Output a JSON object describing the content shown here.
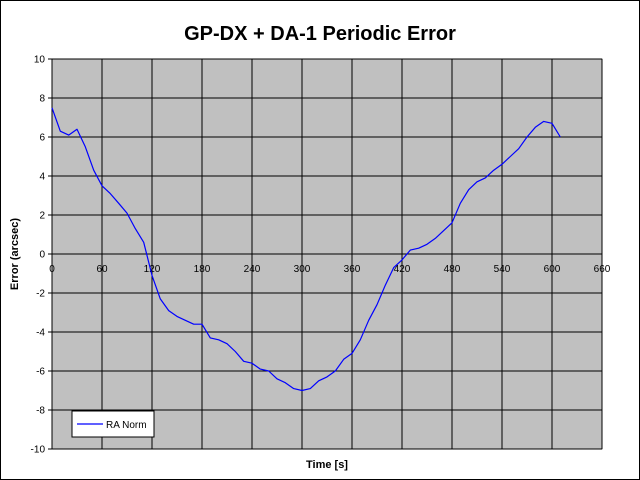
{
  "chart_data": {
    "type": "line",
    "title": "GP-DX + DA-1 Periodic Error",
    "xlabel": "Time [s]",
    "ylabel": "Error (arcsec)",
    "xlim": [
      0,
      660
    ],
    "ylim": [
      -10,
      10
    ],
    "x_ticks": [
      "0",
      "60",
      "120",
      "180",
      "240",
      "300",
      "360",
      "420",
      "480",
      "540",
      "600",
      "660"
    ],
    "y_ticks": [
      "10",
      "8",
      "6",
      "4",
      "2",
      "0",
      "-2",
      "-4",
      "-6",
      "-8",
      "-10"
    ],
    "grid": true,
    "legend_position": "bottom-left",
    "plot_background": "#c0c0c0",
    "series": [
      {
        "name": "RA Norm",
        "color": "#0000ff",
        "x": [
          0,
          10,
          20,
          30,
          40,
          50,
          60,
          70,
          80,
          90,
          100,
          110,
          120,
          130,
          140,
          150,
          160,
          170,
          180,
          190,
          200,
          210,
          220,
          230,
          240,
          250,
          260,
          270,
          280,
          290,
          300,
          310,
          320,
          330,
          340,
          350,
          360,
          370,
          380,
          390,
          400,
          410,
          420,
          430,
          440,
          450,
          460,
          470,
          480,
          490,
          500,
          510,
          520,
          530,
          540,
          550,
          560,
          570,
          580,
          590,
          600,
          610
        ],
        "y": [
          7.5,
          6.3,
          6.1,
          6.4,
          5.5,
          4.3,
          3.5,
          3.1,
          2.6,
          2.1,
          1.3,
          0.6,
          -1.1,
          -2.3,
          -2.9,
          -3.2,
          -3.4,
          -3.6,
          -3.6,
          -4.3,
          -4.4,
          -4.6,
          -5.0,
          -5.5,
          -5.6,
          -5.9,
          -6.0,
          -6.4,
          -6.6,
          -6.9,
          -7.0,
          -6.9,
          -6.5,
          -6.3,
          -6.0,
          -5.4,
          -5.1,
          -4.4,
          -3.4,
          -2.6,
          -1.6,
          -0.7,
          -0.3,
          0.2,
          0.3,
          0.5,
          0.8,
          1.2,
          1.6,
          2.6,
          3.3,
          3.7,
          3.9,
          4.3,
          4.6,
          5.0,
          5.4,
          6.0,
          6.5,
          6.8,
          6.7,
          6.0
        ]
      }
    ]
  }
}
